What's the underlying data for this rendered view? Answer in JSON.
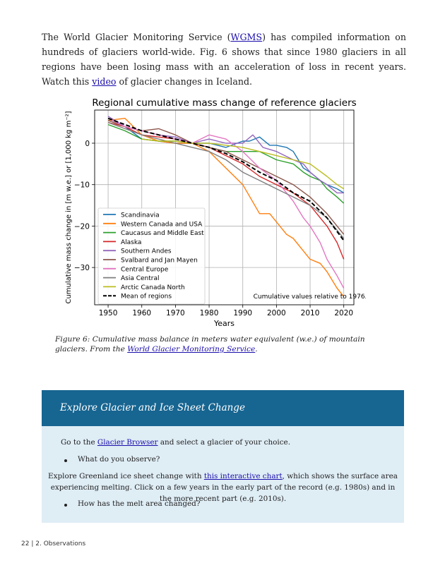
{
  "intro": {
    "t1": "The World Glacier Monitoring Service (",
    "link1": "WGMS",
    "t2": ") has compiled information on hundreds of glaciers world-wide. Fig. 6 shows that since 1980 glaciers in all regions have been losing mass with an acceleration of loss in recent years. Watch this ",
    "link2": "video",
    "t3": " of glacier changes in Iceland."
  },
  "chart_data": {
    "type": "line",
    "title": "Regional cumulative mass change of reference glaciers",
    "xlabel": "Years",
    "ylabel": "Cumulative mass change in [m w.e.] or [1,000 kg m⁻²]",
    "xlim": [
      1946,
      2023
    ],
    "ylim": [
      -39,
      8
    ],
    "xticks": [
      1950,
      1960,
      1970,
      1980,
      1990,
      2000,
      2010,
      2020
    ],
    "yticks": [
      0,
      -10,
      -20,
      -30
    ],
    "grid": true,
    "legend_position": "lower-left",
    "annotation": "Cumulative values relative to 1976.",
    "series": [
      {
        "name": "Scandinavia",
        "color": "#1f77b4",
        "style": "solid",
        "x": [
          1950,
          1955,
          1960,
          1965,
          1970,
          1975,
          1980,
          1985,
          1990,
          1992,
          1995,
          1998,
          2000,
          2003,
          2005,
          2008,
          2010,
          2013,
          2015,
          2018,
          2020
        ],
        "y": [
          6,
          4,
          1,
          0.5,
          0,
          0,
          0,
          -1,
          0.5,
          0.5,
          1.5,
          -0.5,
          -0.5,
          -1,
          -2,
          -6,
          -7,
          -9,
          -10,
          -11,
          -12
        ]
      },
      {
        "name": "Western Canada and USA",
        "color": "#ff7f0e",
        "style": "solid",
        "x": [
          1950,
          1955,
          1960,
          1965,
          1970,
          1975,
          1980,
          1985,
          1990,
          1995,
          1998,
          2000,
          2003,
          2005,
          2008,
          2010,
          2013,
          2015,
          2018,
          2020
        ],
        "y": [
          5.5,
          6,
          2,
          0.5,
          0,
          0,
          -2,
          -6,
          -10,
          -17,
          -17,
          -19,
          -22,
          -23,
          -26,
          -28,
          -29,
          -31,
          -35,
          -37
        ]
      },
      {
        "name": "Caucasus and Middle East",
        "color": "#2ca02c",
        "style": "solid",
        "x": [
          1950,
          1955,
          1960,
          1965,
          1970,
          1975,
          1980,
          1985,
          1990,
          1995,
          2000,
          2005,
          2008,
          2010,
          2013,
          2015,
          2018,
          2020
        ],
        "y": [
          4.5,
          3,
          1,
          0.5,
          0.5,
          0,
          -1,
          -2,
          -2,
          -2,
          -4,
          -5,
          -7,
          -8,
          -9,
          -11,
          -13,
          -14.5
        ]
      },
      {
        "name": "Alaska",
        "color": "#d62728",
        "style": "solid",
        "x": [
          1950,
          1955,
          1960,
          1965,
          1970,
          1975,
          1980,
          1985,
          1990,
          1995,
          2000,
          2005,
          2010,
          2013,
          2015,
          2018,
          2020
        ],
        "y": [
          5,
          4,
          2,
          1.5,
          1,
          0,
          -1,
          -3,
          -5,
          -8,
          -10,
          -12,
          -15,
          -18,
          -20,
          -24,
          -28
        ]
      },
      {
        "name": "Southern Andes",
        "color": "#9467bd",
        "style": "solid",
        "x": [
          1950,
          1955,
          1960,
          1965,
          1970,
          1975,
          1980,
          1985,
          1990,
          1993,
          1996,
          2000,
          2005,
          2008,
          2010,
          2013,
          2015,
          2018,
          2020
        ],
        "y": [
          6.5,
          4,
          3,
          2,
          1.5,
          0,
          1,
          0,
          0,
          2,
          -1,
          -2,
          -4,
          -5,
          -7,
          -9,
          -10,
          -12,
          -12
        ]
      },
      {
        "name": "Svalbard and Jan Mayen",
        "color": "#8c564b",
        "style": "solid",
        "x": [
          1950,
          1955,
          1960,
          1965,
          1970,
          1975,
          1980,
          1985,
          1990,
          1995,
          2000,
          2005,
          2010,
          2015,
          2018,
          2020
        ],
        "y": [
          5.5,
          4,
          3,
          3.5,
          2,
          0,
          -1,
          -2,
          -4,
          -6,
          -8,
          -10,
          -13,
          -17,
          -20,
          -22
        ]
      },
      {
        "name": "Central Europe",
        "color": "#e377c2",
        "style": "solid",
        "x": [
          1950,
          1955,
          1960,
          1965,
          1970,
          1975,
          1980,
          1985,
          1990,
          1995,
          2000,
          2003,
          2005,
          2008,
          2010,
          2013,
          2015,
          2018,
          2020
        ],
        "y": [
          6,
          4,
          3,
          2,
          1,
          0,
          2,
          1,
          -2,
          -6,
          -9,
          -12,
          -14,
          -18,
          -20,
          -24,
          -28,
          -32,
          -35
        ]
      },
      {
        "name": "Asia Central",
        "color": "#7f7f7f",
        "style": "solid",
        "x": [
          1950,
          1955,
          1960,
          1965,
          1970,
          1975,
          1980,
          1985,
          1990,
          1995,
          2000,
          2005,
          2010,
          2015,
          2020
        ],
        "y": [
          5,
          3.5,
          2,
          1,
          0,
          -1,
          -2,
          -4,
          -7,
          -9,
          -11,
          -13,
          -15,
          -18,
          -23
        ]
      },
      {
        "name": "Arctic Canada North",
        "color": "#bcbd22",
        "style": "solid",
        "x": [
          1960,
          1965,
          1970,
          1975,
          1980,
          1985,
          1990,
          1995,
          2000,
          2005,
          2010,
          2015,
          2018,
          2020
        ],
        "y": [
          1,
          0.5,
          0.5,
          0,
          0,
          -0.5,
          -1,
          -2,
          -3,
          -4,
          -5,
          -8,
          -10,
          -11
        ]
      },
      {
        "name": "Mean of regions",
        "color": "#000000",
        "style": "dashed",
        "x": [
          1950,
          1955,
          1960,
          1965,
          1970,
          1975,
          1980,
          1985,
          1990,
          1995,
          2000,
          2005,
          2010,
          2015,
          2020
        ],
        "y": [
          6,
          4.5,
          3,
          2,
          1,
          0,
          -1,
          -2.5,
          -4.5,
          -7,
          -9,
          -12,
          -14,
          -18,
          -23.5
        ]
      }
    ]
  },
  "caption": {
    "t1": "Figure 6: Cumulative mass balance in meters water equivalent (w.e.) of mountain glaciers. From the ",
    "link": "World Glacier Monitoring Service",
    "t2": "."
  },
  "box": {
    "title": "Explore Glacier and Ice Sheet Change",
    "p1_t1": "Go to the ",
    "p1_link": "Glacier Browser",
    "p1_t2": " and select a glacier of your choice.",
    "bullet1": "What do you observe?",
    "p2_t1": "Explore Greenland ice sheet change with ",
    "p2_link": "this interactive chart",
    "p2_t2": ", which shows the surface area experiencing melting. Click on a few years in the early part of the record (e.g. 1980s) and in the more recent part (e.g. 2010s).",
    "bullet2": "How has the melt area changed?",
    "box_color": "#176591",
    "body_color": "#dfedf5"
  },
  "footer": {
    "page": "22",
    "sep": "|",
    "section": "2. Observations"
  }
}
